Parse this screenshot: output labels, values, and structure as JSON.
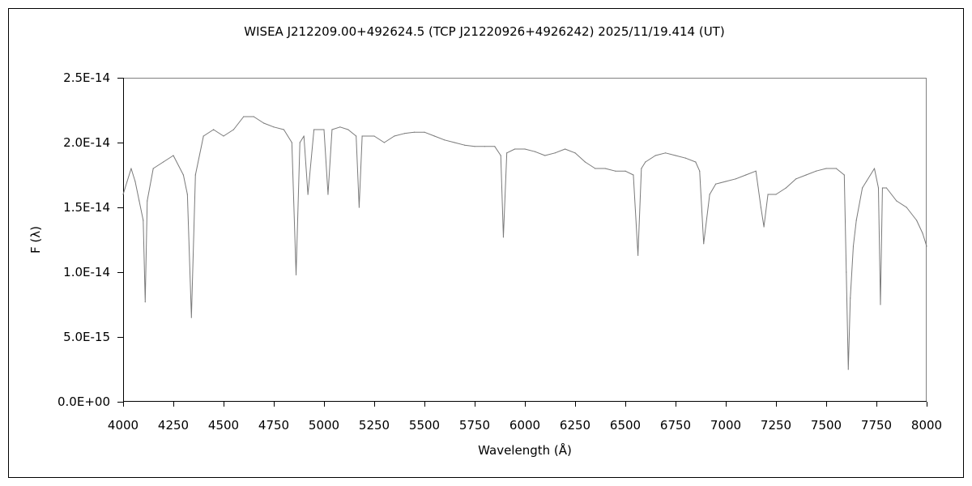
{
  "chart_data": {
    "type": "line",
    "title": "WISEA J212209.00+492624.5 (TCP J21220926+4926242)   2025/11/19.414 (UT)",
    "xlabel": "Wavelength (Å)",
    "ylabel": "F (λ)",
    "xlim": [
      4000,
      8000
    ],
    "ylim": [
      0,
      2.5e-14
    ],
    "x_ticks": [
      4000,
      4250,
      4500,
      4750,
      5000,
      5250,
      5500,
      5750,
      6000,
      6250,
      6500,
      6750,
      7000,
      7250,
      7500,
      7750,
      8000
    ],
    "x_tick_labels": [
      "4000",
      "4250",
      "4500",
      "4750",
      "5000",
      "5250",
      "5500",
      "5750",
      "6000",
      "6250",
      "6500",
      "6750",
      "7000",
      "7250",
      "7500",
      "7750",
      "8000"
    ],
    "y_ticks": [
      0,
      5e-15,
      1e-14,
      1.5e-14,
      2e-14,
      2.5e-14
    ],
    "y_tick_labels": [
      "0.0E+00",
      "5.0E-15",
      "1.0E-14",
      "1.5E-14",
      "2.0E-14",
      "2.5E-14"
    ],
    "grid": false,
    "legend": "none",
    "series_color": "#7a7a7a",
    "series": [
      {
        "x": [
          4000,
          4020,
          4040,
          4060,
          4080,
          4100,
          4110,
          4120,
          4150,
          4200,
          4250,
          4300,
          4320,
          4340,
          4360,
          4400,
          4450,
          4500,
          4550,
          4600,
          4650,
          4700,
          4750,
          4800,
          4840,
          4861,
          4880,
          4900,
          4920,
          4950,
          5000,
          5020,
          5040,
          5080,
          5120,
          5160,
          5175,
          5190,
          5250,
          5300,
          5350,
          5400,
          5450,
          5500,
          5550,
          5600,
          5650,
          5700,
          5750,
          5800,
          5850,
          5880,
          5893,
          5910,
          5950,
          6000,
          6050,
          6100,
          6150,
          6200,
          6250,
          6300,
          6350,
          6400,
          6450,
          6500,
          6540,
          6563,
          6580,
          6600,
          6650,
          6700,
          6750,
          6800,
          6850,
          6870,
          6890,
          6920,
          6950,
          7000,
          7050,
          7100,
          7150,
          7175,
          7190,
          7210,
          7250,
          7300,
          7350,
          7400,
          7450,
          7500,
          7550,
          7590,
          7600,
          7610,
          7620,
          7635,
          7650,
          7680,
          7700,
          7740,
          7760,
          7770,
          7780,
          7800,
          7850,
          7900,
          7950,
          7980,
          8000
        ],
        "y": [
          1.6e-14,
          1.7e-14,
          1.8e-14,
          1.7e-14,
          1.55e-14,
          1.4e-14,
          7.7e-15,
          1.55e-14,
          1.8e-14,
          1.85e-14,
          1.9e-14,
          1.75e-14,
          1.6e-14,
          6.5e-15,
          1.75e-14,
          2.05e-14,
          2.1e-14,
          2.05e-14,
          2.1e-14,
          2.2e-14,
          2.2e-14,
          2.15e-14,
          2.12e-14,
          2.1e-14,
          2e-14,
          9.8e-15,
          2e-14,
          2.05e-14,
          1.6e-14,
          2.1e-14,
          2.1e-14,
          1.6e-14,
          2.1e-14,
          2.12e-14,
          2.1e-14,
          2.05e-14,
          1.5e-14,
          2.05e-14,
          2.05e-14,
          2e-14,
          2.05e-14,
          2.07e-14,
          2.08e-14,
          2.08e-14,
          2.05e-14,
          2.02e-14,
          2e-14,
          1.98e-14,
          1.97e-14,
          1.97e-14,
          1.97e-14,
          1.9e-14,
          1.27e-14,
          1.92e-14,
          1.95e-14,
          1.95e-14,
          1.93e-14,
          1.9e-14,
          1.92e-14,
          1.95e-14,
          1.92e-14,
          1.85e-14,
          1.8e-14,
          1.8e-14,
          1.78e-14,
          1.78e-14,
          1.75e-14,
          1.13e-14,
          1.8e-14,
          1.85e-14,
          1.9e-14,
          1.92e-14,
          1.9e-14,
          1.88e-14,
          1.85e-14,
          1.78e-14,
          1.22e-14,
          1.6e-14,
          1.68e-14,
          1.7e-14,
          1.72e-14,
          1.75e-14,
          1.78e-14,
          1.5e-14,
          1.35e-14,
          1.6e-14,
          1.6e-14,
          1.65e-14,
          1.72e-14,
          1.75e-14,
          1.78e-14,
          1.8e-14,
          1.8e-14,
          1.75e-14,
          1e-14,
          2.5e-15,
          8e-15,
          1.2e-14,
          1.4e-14,
          1.65e-14,
          1.7e-14,
          1.8e-14,
          1.65e-14,
          7.5e-15,
          1.65e-14,
          1.65e-14,
          1.55e-14,
          1.5e-14,
          1.4e-14,
          1.3e-14,
          1.2e-14
        ]
      }
    ]
  }
}
